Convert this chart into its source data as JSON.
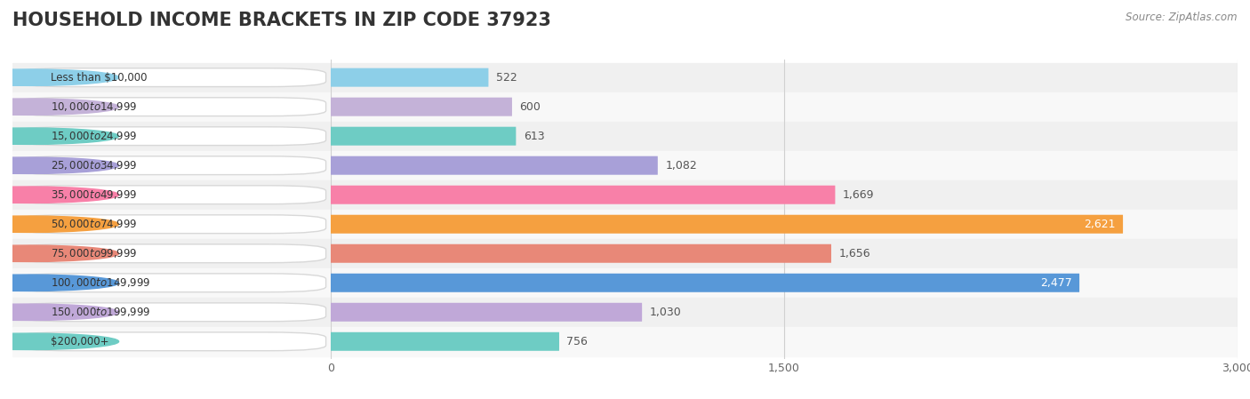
{
  "title": "HOUSEHOLD INCOME BRACKETS IN ZIP CODE 37923",
  "source": "Source: ZipAtlas.com",
  "categories": [
    "Less than $10,000",
    "$10,000 to $14,999",
    "$15,000 to $24,999",
    "$25,000 to $34,999",
    "$35,000 to $49,999",
    "$50,000 to $74,999",
    "$75,000 to $99,999",
    "$100,000 to $149,999",
    "$150,000 to $199,999",
    "$200,000+"
  ],
  "values": [
    522,
    600,
    613,
    1082,
    1669,
    2621,
    1656,
    2477,
    1030,
    756
  ],
  "bar_colors": [
    "#8dcfe8",
    "#c4b2d8",
    "#6eccc4",
    "#a8a0d8",
    "#f880a8",
    "#f5a040",
    "#e88878",
    "#5898d8",
    "#c0a8d8",
    "#6eccc4"
  ],
  "value_label_inside": [
    false,
    false,
    false,
    false,
    false,
    true,
    false,
    true,
    false,
    false
  ],
  "xlim": [
    0,
    3000
  ],
  "xticks": [
    0,
    1500,
    3000
  ],
  "row_bg_light": "#f2f2f2",
  "row_bg_dark": "#e8e8e8",
  "title_fontsize": 15,
  "bar_height": 0.62
}
